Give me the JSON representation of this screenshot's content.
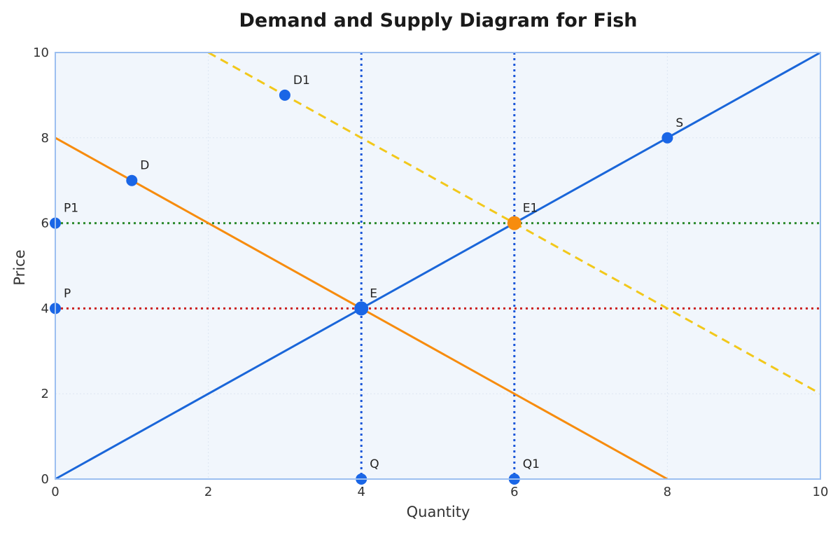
{
  "chart_data": {
    "type": "line",
    "title": "Demand and Supply Diagram for Fish",
    "xlabel": "Quantity",
    "ylabel": "Price",
    "xlim": [
      0,
      10
    ],
    "ylim": [
      0,
      10
    ],
    "xticks": [
      0,
      2,
      4,
      6,
      8,
      10
    ],
    "yticks": [
      0,
      2,
      4,
      6,
      8,
      10
    ],
    "grid": true,
    "colors": {
      "supply": "#1a66d9",
      "demand": "#f78c0e",
      "demand_shifted": "#f2c81b",
      "price_line_P": "#cc2222",
      "price_line_P1": "#2e8b2e",
      "quantity_lines": "#1a56d9",
      "point": "#1a66e6",
      "equilibrium_new": "#f78c0e",
      "plot_bg": "#f1f6fc",
      "frame": "#9cbff0"
    },
    "series": [
      {
        "key": "S",
        "style": "solid",
        "color_key": "supply",
        "x": [
          0,
          10
        ],
        "y": [
          0,
          10
        ]
      },
      {
        "key": "D",
        "style": "solid",
        "color_key": "demand",
        "x": [
          0,
          8
        ],
        "y": [
          8,
          0
        ]
      },
      {
        "key": "D1",
        "style": "dashed",
        "color_key": "demand_shifted",
        "x": [
          2,
          10
        ],
        "y": [
          10,
          2
        ]
      }
    ],
    "reference_lines": [
      {
        "key": "P-line",
        "orientation": "horizontal",
        "value": 4,
        "color_key": "price_line_P"
      },
      {
        "key": "P1-line",
        "orientation": "horizontal",
        "value": 6,
        "color_key": "price_line_P1"
      },
      {
        "key": "Q-line",
        "orientation": "vertical",
        "value": 4,
        "color_key": "quantity_lines"
      },
      {
        "key": "Q1-line",
        "orientation": "vertical",
        "value": 6,
        "color_key": "quantity_lines"
      }
    ],
    "points": [
      {
        "label": "D1",
        "x": 3,
        "y": 9,
        "color_key": "point",
        "size": "normal"
      },
      {
        "label": "S",
        "x": 8,
        "y": 8,
        "color_key": "point",
        "size": "normal"
      },
      {
        "label": "D",
        "x": 1,
        "y": 7,
        "color_key": "point",
        "size": "normal"
      },
      {
        "label": "P1",
        "x": 0,
        "y": 6,
        "color_key": "point",
        "size": "normal"
      },
      {
        "label": "E1",
        "x": 6,
        "y": 6,
        "color_key": "equilibrium_new",
        "size": "large"
      },
      {
        "label": "P",
        "x": 0,
        "y": 4,
        "color_key": "point",
        "size": "normal"
      },
      {
        "label": "E",
        "x": 4,
        "y": 4,
        "color_key": "point",
        "size": "large"
      },
      {
        "label": "Q",
        "x": 4,
        "y": 0,
        "color_key": "point",
        "size": "normal"
      },
      {
        "label": "Q1",
        "x": 6,
        "y": 0,
        "color_key": "point",
        "size": "normal"
      }
    ]
  }
}
